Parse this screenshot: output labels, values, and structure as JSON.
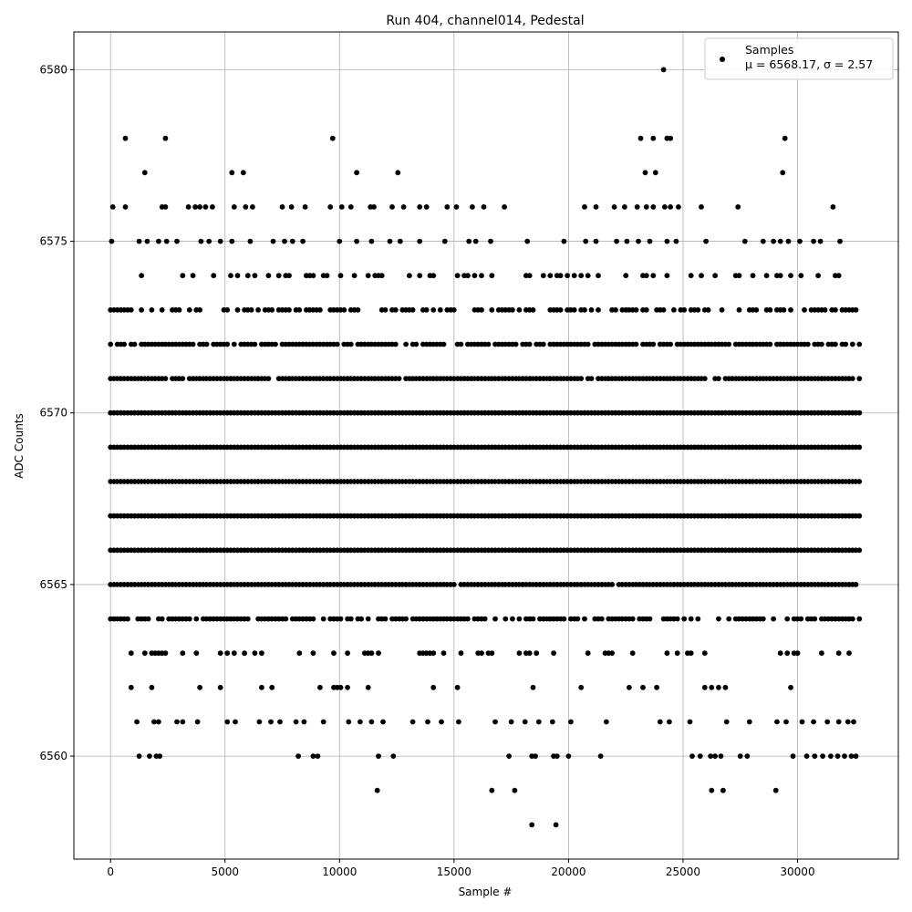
{
  "chart_data": {
    "type": "scatter",
    "title": "Run 404, channel014, Pedestal",
    "xlabel": "Sample #",
    "ylabel": "ADC Counts",
    "xlim": [
      -1600,
      34400
    ],
    "ylim": [
      6557.0,
      6581.1
    ],
    "xticks": [
      0,
      5000,
      10000,
      15000,
      20000,
      25000,
      30000
    ],
    "yticks": [
      6560,
      6565,
      6570,
      6575,
      6580
    ],
    "grid": true,
    "legend_position": "top-right",
    "series": [
      {
        "name": "Samples",
        "legend_stats": "μ = 6568.17, σ = 2.57",
        "color": "#000000",
        "marker": "circle",
        "x_range": [
          0,
          32767
        ],
        "mean": 6568.17,
        "std": 2.57,
        "level_fill_fraction": {
          "6558": 0.0,
          "6559": 0.0,
          "6560": 0.0,
          "6561": 0.012,
          "6562": 0.09,
          "6563": 0.3,
          "6564": 0.7,
          "6565": 0.97,
          "6566": 1.0,
          "6567": 1.0,
          "6568": 1.0,
          "6569": 1.0,
          "6570": 1.0,
          "6571": 0.97,
          "6572": 0.85,
          "6573": 0.55,
          "6574": 0.3,
          "6575": 0.035,
          "6576": 0.012,
          "6577": 0.0,
          "6578": 0.0,
          "6579": 0.0,
          "6580": 0.0
        },
        "sparse_points": [
          [
            1150,
            6561
          ],
          [
            1900,
            6561
          ],
          [
            2100,
            6561
          ],
          [
            2900,
            6561
          ],
          [
            3150,
            6561
          ],
          [
            3800,
            6561
          ],
          [
            5100,
            6561
          ],
          [
            5450,
            6561
          ],
          [
            6500,
            6561
          ],
          [
            7000,
            6561
          ],
          [
            7400,
            6561
          ],
          [
            8100,
            6561
          ],
          [
            8450,
            6561
          ],
          [
            9300,
            6561
          ],
          [
            10400,
            6561
          ],
          [
            10900,
            6561
          ],
          [
            11400,
            6561
          ],
          [
            11900,
            6561
          ],
          [
            13200,
            6561
          ],
          [
            13850,
            6561
          ],
          [
            14450,
            6561
          ],
          [
            15200,
            6561
          ],
          [
            16800,
            6561
          ],
          [
            17500,
            6561
          ],
          [
            18100,
            6561
          ],
          [
            18700,
            6561
          ],
          [
            19300,
            6561
          ],
          [
            20100,
            6561
          ],
          [
            21650,
            6561
          ],
          [
            24000,
            6561
          ],
          [
            24400,
            6561
          ],
          [
            25300,
            6561
          ],
          [
            26900,
            6561
          ],
          [
            27900,
            6561
          ],
          [
            29100,
            6561
          ],
          [
            29500,
            6561
          ],
          [
            30200,
            6561
          ],
          [
            30700,
            6561
          ],
          [
            31300,
            6561
          ],
          [
            31800,
            6561
          ],
          [
            32200,
            6561
          ],
          [
            32450,
            6561
          ],
          [
            1250,
            6560
          ],
          [
            1700,
            6560
          ],
          [
            2000,
            6560
          ],
          [
            2150,
            6560
          ],
          [
            8200,
            6560
          ],
          [
            8850,
            6560
          ],
          [
            9050,
            6560
          ],
          [
            11700,
            6560
          ],
          [
            12350,
            6560
          ],
          [
            17400,
            6560
          ],
          [
            18400,
            6560
          ],
          [
            18550,
            6560
          ],
          [
            19350,
            6560
          ],
          [
            19500,
            6560
          ],
          [
            20000,
            6560
          ],
          [
            21400,
            6560
          ],
          [
            25400,
            6560
          ],
          [
            25750,
            6560
          ],
          [
            26200,
            6560
          ],
          [
            26400,
            6560
          ],
          [
            26650,
            6560
          ],
          [
            27500,
            6560
          ],
          [
            27800,
            6560
          ],
          [
            29800,
            6560
          ],
          [
            30400,
            6560
          ],
          [
            30750,
            6560
          ],
          [
            31100,
            6560
          ],
          [
            31450,
            6560
          ],
          [
            31750,
            6560
          ],
          [
            32050,
            6560
          ],
          [
            32350,
            6560
          ],
          [
            32550,
            6560
          ],
          [
            11650,
            6559
          ],
          [
            16650,
            6559
          ],
          [
            17650,
            6559
          ],
          [
            26250,
            6559
          ],
          [
            26750,
            6559
          ],
          [
            29050,
            6559
          ],
          [
            18400,
            6558
          ],
          [
            19450,
            6558
          ],
          [
            100,
            6576
          ],
          [
            650,
            6576
          ],
          [
            2250,
            6576
          ],
          [
            2400,
            6576
          ],
          [
            3400,
            6576
          ],
          [
            3700,
            6576
          ],
          [
            3900,
            6576
          ],
          [
            4150,
            6576
          ],
          [
            4450,
            6576
          ],
          [
            5400,
            6576
          ],
          [
            5900,
            6576
          ],
          [
            6200,
            6576
          ],
          [
            7500,
            6576
          ],
          [
            7900,
            6576
          ],
          [
            8500,
            6576
          ],
          [
            9600,
            6576
          ],
          [
            10100,
            6576
          ],
          [
            10500,
            6576
          ],
          [
            11350,
            6576
          ],
          [
            11500,
            6576
          ],
          [
            12300,
            6576
          ],
          [
            12800,
            6576
          ],
          [
            13500,
            6576
          ],
          [
            13800,
            6576
          ],
          [
            14700,
            6576
          ],
          [
            15100,
            6576
          ],
          [
            15800,
            6576
          ],
          [
            16300,
            6576
          ],
          [
            17200,
            6576
          ],
          [
            20700,
            6576
          ],
          [
            21200,
            6576
          ],
          [
            22000,
            6576
          ],
          [
            22450,
            6576
          ],
          [
            23000,
            6576
          ],
          [
            23400,
            6576
          ],
          [
            23700,
            6576
          ],
          [
            24200,
            6576
          ],
          [
            24450,
            6576
          ],
          [
            24800,
            6576
          ],
          [
            25800,
            6576
          ],
          [
            27400,
            6576
          ],
          [
            31550,
            6576
          ],
          [
            50,
            6575
          ],
          [
            1250,
            6575
          ],
          [
            1600,
            6575
          ],
          [
            2100,
            6575
          ],
          [
            2450,
            6575
          ],
          [
            2900,
            6575
          ],
          [
            3950,
            6575
          ],
          [
            4300,
            6575
          ],
          [
            4800,
            6575
          ],
          [
            5300,
            6575
          ],
          [
            6100,
            6575
          ],
          [
            7100,
            6575
          ],
          [
            7600,
            6575
          ],
          [
            7950,
            6575
          ],
          [
            8400,
            6575
          ],
          [
            10000,
            6575
          ],
          [
            10750,
            6575
          ],
          [
            11400,
            6575
          ],
          [
            12200,
            6575
          ],
          [
            12650,
            6575
          ],
          [
            13500,
            6575
          ],
          [
            14600,
            6575
          ],
          [
            15650,
            6575
          ],
          [
            15950,
            6575
          ],
          [
            16600,
            6575
          ],
          [
            18200,
            6575
          ],
          [
            19800,
            6575
          ],
          [
            20750,
            6575
          ],
          [
            21200,
            6575
          ],
          [
            22100,
            6575
          ],
          [
            22550,
            6575
          ],
          [
            23050,
            6575
          ],
          [
            23550,
            6575
          ],
          [
            24300,
            6575
          ],
          [
            24700,
            6575
          ],
          [
            26000,
            6575
          ],
          [
            27700,
            6575
          ],
          [
            28500,
            6575
          ],
          [
            28950,
            6575
          ],
          [
            29250,
            6575
          ],
          [
            29600,
            6575
          ],
          [
            30100,
            6575
          ],
          [
            30700,
            6575
          ],
          [
            31000,
            6575
          ],
          [
            31850,
            6575
          ],
          [
            1500,
            6577
          ],
          [
            5300,
            6577
          ],
          [
            5800,
            6577
          ],
          [
            10750,
            6577
          ],
          [
            12550,
            6577
          ],
          [
            23350,
            6577
          ],
          [
            23800,
            6577
          ],
          [
            29350,
            6577
          ],
          [
            650,
            6578
          ],
          [
            2400,
            6578
          ],
          [
            9700,
            6578
          ],
          [
            23150,
            6578
          ],
          [
            23700,
            6578
          ],
          [
            24300,
            6578
          ],
          [
            24450,
            6578
          ],
          [
            29450,
            6578
          ],
          [
            24150,
            6580
          ]
        ]
      }
    ]
  }
}
